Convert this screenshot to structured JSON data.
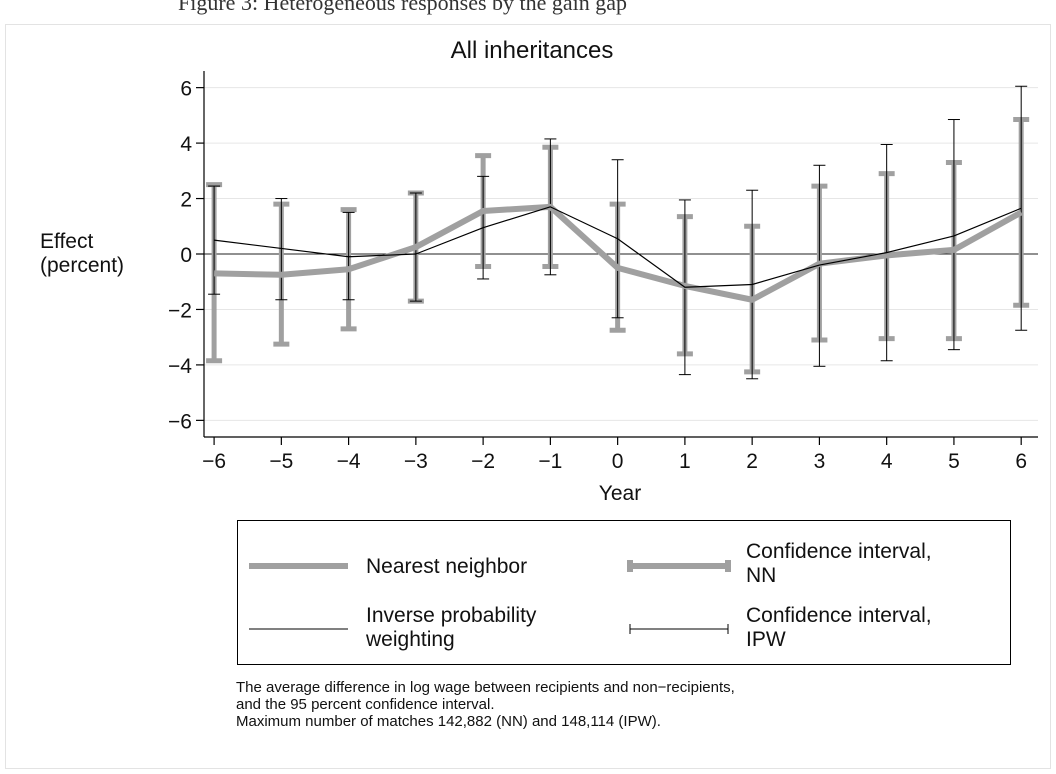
{
  "top_caption": "Figure 3: Heterogeneous responses by the gain gap",
  "chart_data": {
    "type": "line",
    "title": "All inheritances",
    "xlabel": "Year",
    "ylabel": "Effect\n(percent)",
    "x": [
      -6,
      -5,
      -4,
      -3,
      -2,
      -1,
      0,
      1,
      2,
      3,
      4,
      5,
      6
    ],
    "xticks": [
      "−6",
      "−5",
      "−4",
      "−3",
      "−2",
      "−1",
      "0",
      "1",
      "2",
      "3",
      "4",
      "5",
      "6"
    ],
    "yticks": [
      -6,
      -4,
      -2,
      0,
      2,
      4,
      6
    ],
    "ytick_labels": [
      "−6",
      "−4",
      "−2",
      "0",
      "2",
      "4",
      "6"
    ],
    "xlim": [
      -6.15,
      6.25
    ],
    "ylim": [
      -6.6,
      6.6
    ],
    "grid": true,
    "legend_position": "bottom",
    "series": [
      {
        "name": "Nearest neighbor",
        "ci_name": "Confidence interval, NN",
        "color": "#a0a0a0",
        "values": [
          -0.7,
          -0.75,
          -0.55,
          0.25,
          1.55,
          1.7,
          -0.5,
          -1.15,
          -1.65,
          -0.35,
          -0.05,
          0.15,
          1.5
        ],
        "ci_low": [
          -3.85,
          -3.25,
          -2.7,
          -1.7,
          -0.45,
          -0.45,
          -2.75,
          -3.6,
          -4.25,
          -3.1,
          -3.05,
          -3.05,
          -1.85
        ],
        "ci_high": [
          2.5,
          1.8,
          1.6,
          2.2,
          3.55,
          3.85,
          1.8,
          1.35,
          1.0,
          2.45,
          2.9,
          3.3,
          4.85
        ]
      },
      {
        "name": "Inverse probability weighting",
        "ci_name": "Confidence interval, IPW",
        "color": "#000000",
        "values": [
          0.5,
          0.2,
          -0.1,
          0.0,
          0.95,
          1.7,
          0.55,
          -1.2,
          -1.1,
          -0.4,
          0.05,
          0.65,
          1.65
        ],
        "ci_low": [
          -1.45,
          -1.65,
          -1.65,
          -1.7,
          -0.9,
          -0.75,
          -2.3,
          -4.35,
          -4.5,
          -4.05,
          -3.85,
          -3.45,
          -2.75
        ],
        "ci_high": [
          2.45,
          2.0,
          1.5,
          2.2,
          2.8,
          4.15,
          3.4,
          1.95,
          2.3,
          3.2,
          3.95,
          4.85,
          6.05
        ]
      }
    ],
    "legend": [
      {
        "label_line1": "Nearest neighbor",
        "label_line2": ""
      },
      {
        "label_line1": "Confidence interval,",
        "label_line2": "NN"
      },
      {
        "label_line1": "Inverse probability",
        "label_line2": "weighting"
      },
      {
        "label_line1": "Confidence interval,",
        "label_line2": "IPW"
      }
    ],
    "notes": [
      "The average difference in log wage between recipients and non−recipients,",
      "and the 95 percent confidence interval.",
      "Maximum number of matches 142,882 (NN) and 148,114 (IPW)."
    ]
  }
}
